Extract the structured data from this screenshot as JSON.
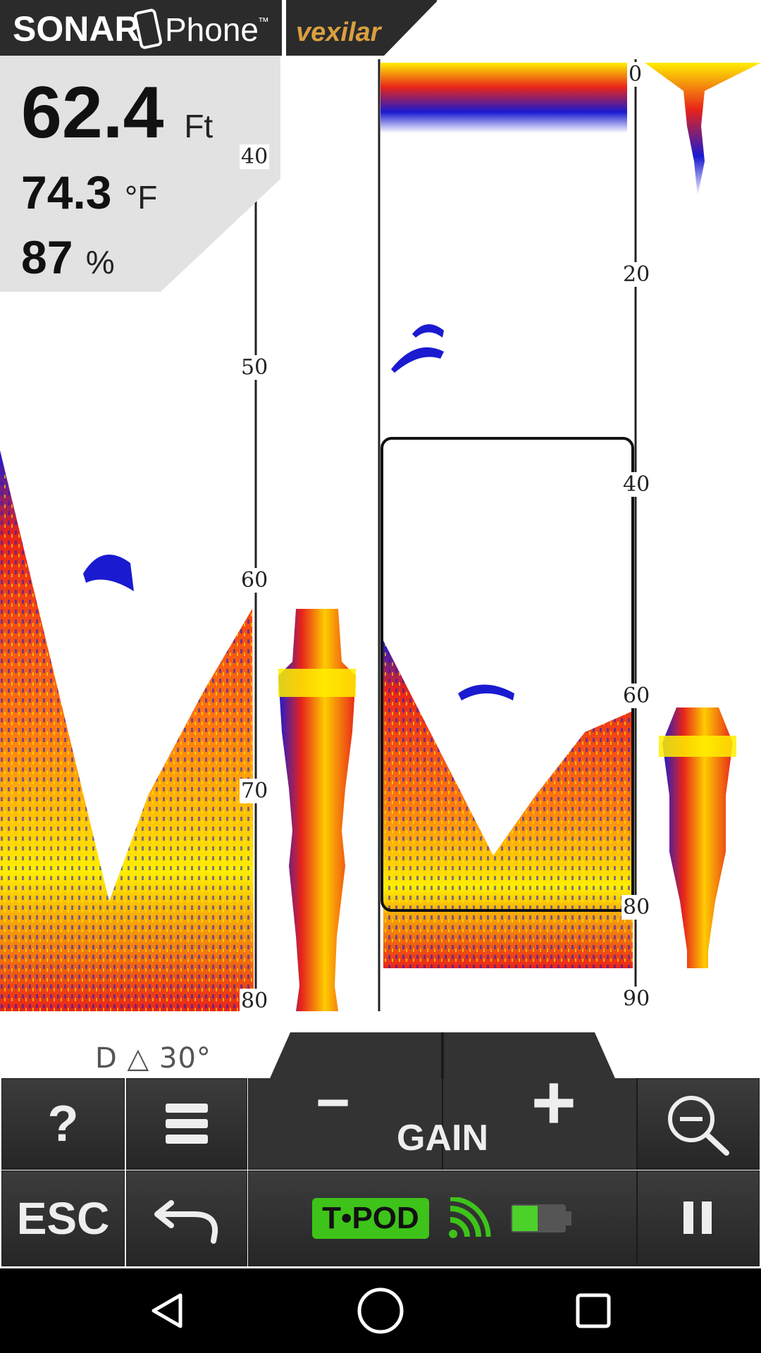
{
  "header": {
    "app_name_bold": "SONAR",
    "app_name_light": "Phone",
    "trademark": "™",
    "partner_brand": "vexilar"
  },
  "readout": {
    "depth_value": "62.4",
    "depth_unit": "Ft",
    "temp_value": "74.3",
    "temp_unit": "°F",
    "battery_value": "87",
    "battery_unit": "%"
  },
  "left_scale": {
    "labels": [
      "40",
      "50",
      "60",
      "70",
      "80"
    ]
  },
  "right_scale": {
    "labels": [
      "0",
      "20",
      "40",
      "60",
      "80",
      "90"
    ]
  },
  "beam_info": "D △ 30°",
  "controls": {
    "help_label": "?",
    "gain_label": "GAIN",
    "minus_label": "−",
    "plus_label": "+",
    "esc_label": "ESC",
    "tpod_label": "T•POD"
  },
  "colors": {
    "button_bg": "#2f2f2f",
    "tpod_green": "#3ec31a",
    "sonar_yellow": "#ffee00",
    "sonar_red": "#e8241a",
    "sonar_blue": "#1a1ad0"
  }
}
